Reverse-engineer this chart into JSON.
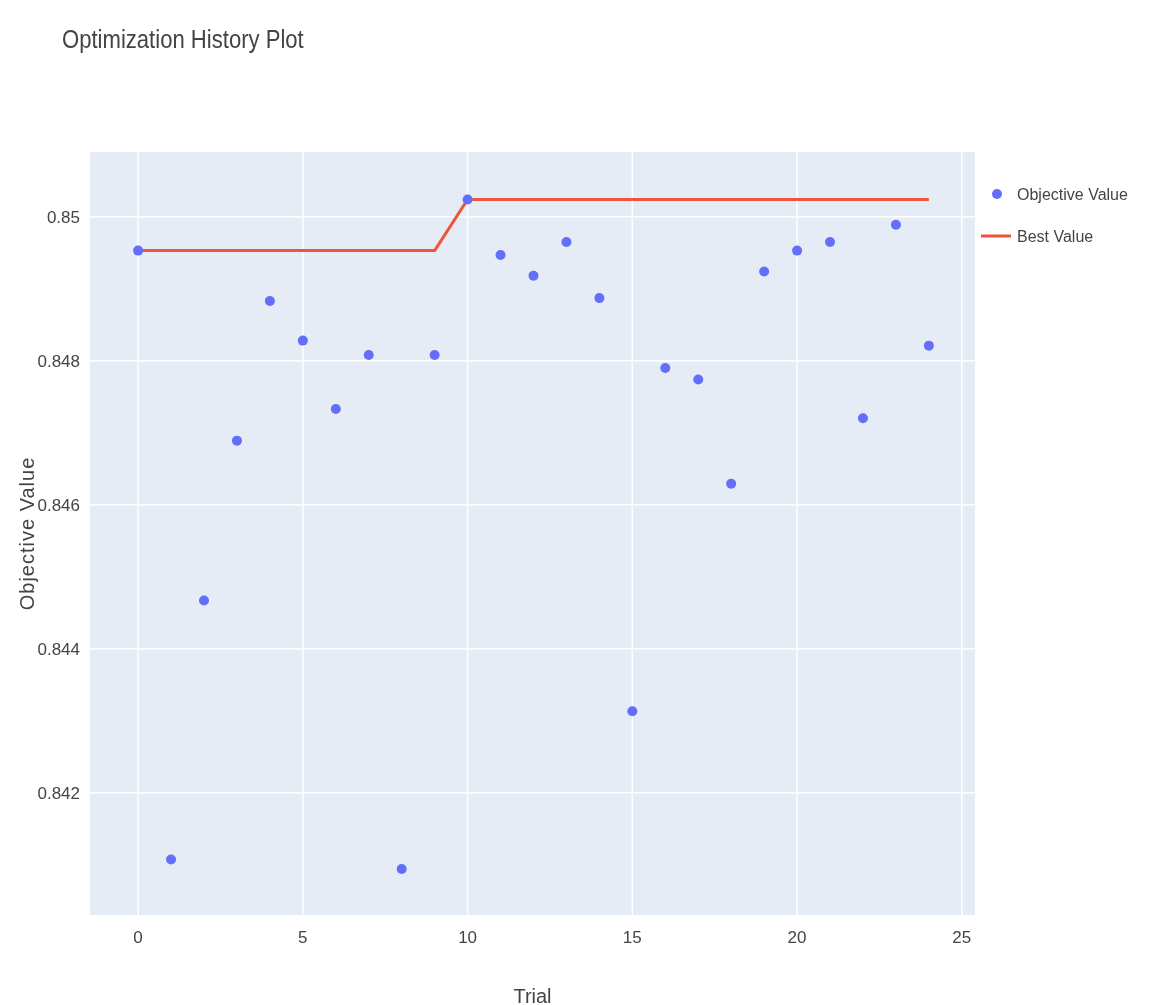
{
  "chart_data": {
    "type": "scatter",
    "title": "Optimization History Plot",
    "xlabel": "Trial",
    "ylabel": "Objective Value",
    "x": [
      0,
      1,
      2,
      3,
      4,
      5,
      6,
      7,
      8,
      9,
      10,
      11,
      12,
      13,
      14,
      15,
      16,
      17,
      18,
      19,
      20,
      21,
      22,
      23,
      24
    ],
    "xlim": [
      -1.46,
      25.4
    ],
    "ylim": [
      0.8403,
      0.8509
    ],
    "xticks": [
      0,
      5,
      10,
      15,
      20,
      25
    ],
    "yticks": [
      {
        "value": 0.842,
        "label": "0.842"
      },
      {
        "value": 0.844,
        "label": "0.844"
      },
      {
        "value": 0.846,
        "label": "0.846"
      },
      {
        "value": 0.848,
        "label": "0.848"
      },
      {
        "value": 0.85,
        "label": "0.85"
      }
    ],
    "grid": true,
    "legend": "top right",
    "series": [
      {
        "name": "Objective Value",
        "marker": "circle",
        "color": "#636efa",
        "values": [
          0.84953,
          0.84107,
          0.84467,
          0.84689,
          0.84883,
          0.84828,
          0.84733,
          0.84808,
          0.84094,
          0.84808,
          0.85024,
          0.84947,
          0.84918,
          0.84965,
          0.84887,
          0.84313,
          0.8479,
          0.84774,
          0.84629,
          0.84924,
          0.84953,
          0.84965,
          0.8472,
          0.84989,
          0.84821
        ]
      },
      {
        "name": "Best Value",
        "type": "line",
        "line_style": "solid",
        "color": "#ef553b",
        "values": [
          0.84953,
          0.84953,
          0.84953,
          0.84953,
          0.84953,
          0.84953,
          0.84953,
          0.84953,
          0.84953,
          0.84953,
          0.85024,
          0.85024,
          0.85024,
          0.85024,
          0.85024,
          0.85024,
          0.85024,
          0.85024,
          0.85024,
          0.85024,
          0.85024,
          0.85024,
          0.85024,
          0.85024,
          0.85024
        ]
      }
    ]
  }
}
